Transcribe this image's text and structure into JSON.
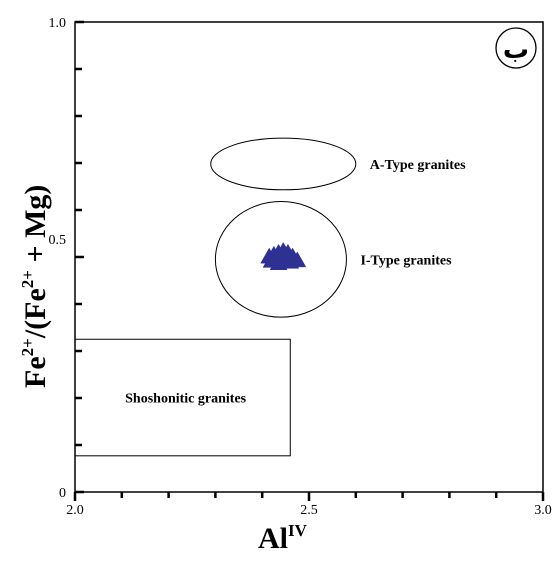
{
  "chart_data": {
    "type": "scatter",
    "xlabel": "Al",
    "xlabel_sup": "IV",
    "ylabel_parts": {
      "a": "Fe",
      "b": "2+",
      "c": "/(Fe",
      "d": "2+",
      "e": " + Mg)"
    },
    "xlim": [
      2.0,
      3.0
    ],
    "ylim": [
      0,
      1.0
    ],
    "x_tick_labels": [
      "2.0",
      "2.5",
      "3.0"
    ],
    "x_tick_values": [
      2.0,
      2.5,
      3.0
    ],
    "y_tick_labels": [
      "0",
      "0.5",
      "1.0"
    ],
    "y_tick_values": [
      0,
      0.5,
      1.0
    ],
    "x_minor_ticks": [
      2.1,
      2.2,
      2.3,
      2.4,
      2.6,
      2.7,
      2.8,
      2.9
    ],
    "y_minor_ticks": [
      0.1,
      0.2,
      0.3,
      0.4,
      0.6,
      0.7,
      0.8,
      0.9
    ],
    "grid": false,
    "panel_label": "ب",
    "regions": [
      {
        "label": "A-Type granites",
        "shape": "ellipse",
        "center": [
          2.445,
          0.698
        ],
        "radii": [
          0.155,
          0.055
        ]
      },
      {
        "label": "I-Type granites",
        "shape": "ellipse",
        "center": [
          2.44,
          0.495
        ],
        "radii": [
          0.14,
          0.123
        ]
      },
      {
        "label": "Shoshonitic granites",
        "shape": "rectangle",
        "x_range": [
          2.0,
          2.46
        ],
        "y_range": [
          0.077,
          0.325
        ]
      }
    ],
    "series": [
      {
        "marker": "triangle",
        "color": "#2e3192",
        "points": [
          [
            2.415,
            0.499
          ],
          [
            2.425,
            0.503
          ],
          [
            2.435,
            0.507
          ],
          [
            2.445,
            0.511
          ],
          [
            2.455,
            0.507
          ],
          [
            2.465,
            0.499
          ],
          [
            2.475,
            0.491
          ],
          [
            2.43,
            0.495
          ],
          [
            2.44,
            0.49
          ],
          [
            2.45,
            0.495
          ],
          [
            2.46,
            0.488
          ],
          [
            2.435,
            0.485
          ],
          [
            2.45,
            0.503
          ],
          [
            2.42,
            0.49
          ]
        ]
      }
    ]
  }
}
